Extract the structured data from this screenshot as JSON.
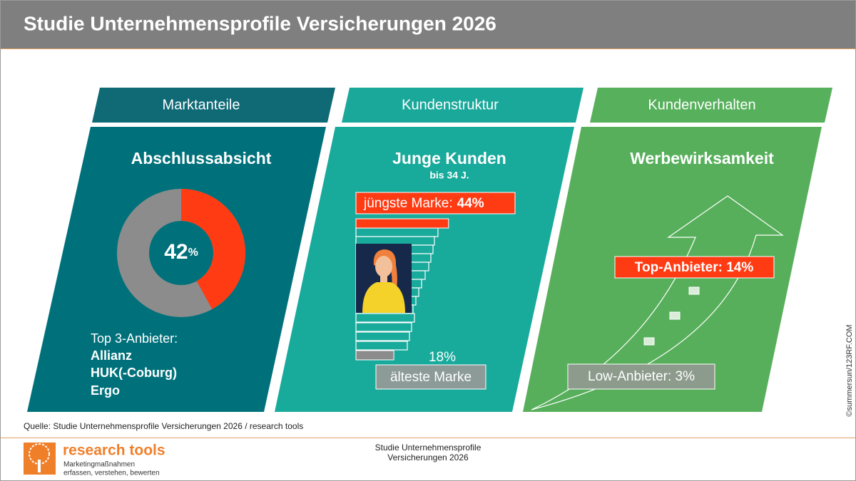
{
  "header": {
    "title": "Studie Unternehmensprofile Versicherungen 2026"
  },
  "panels": [
    {
      "tab": "Marktanteile",
      "heading": "Abschlussabsicht",
      "share": {
        "value": 42,
        "unit": "%"
      },
      "list_title": "Top 3-Anbieter:",
      "items": [
        "Allianz",
        "HUK(-Coburg)",
        "Ergo"
      ]
    },
    {
      "tab": "Kundenstruktur",
      "heading": "Junge Kunden",
      "subheading": "bis 34 J.",
      "youngest": {
        "label": "jüngste Marke:",
        "value": 44,
        "value_label": "44%"
      },
      "oldest": {
        "label": "älteste Marke",
        "value": 18,
        "value_label": "18%"
      }
    },
    {
      "tab": "Kundenverhalten",
      "heading": "Werbewirksamkeit",
      "top": "Top-Anbieter: 14%",
      "low": "Low-Anbieter: 3%"
    }
  ],
  "image_credit": "©summersun/123RF.COM",
  "footer": {
    "source": "Quelle: Studie Unternehmensprofile  Versicherungen 2026 / research tools",
    "logo": {
      "name": "research tools",
      "tagline": [
        "Marketingmaßnahmen",
        "erfassen, verstehen, bewerten"
      ]
    },
    "center": [
      "Studie Unternehmensprofile",
      "Versicherungen 2026"
    ]
  }
}
